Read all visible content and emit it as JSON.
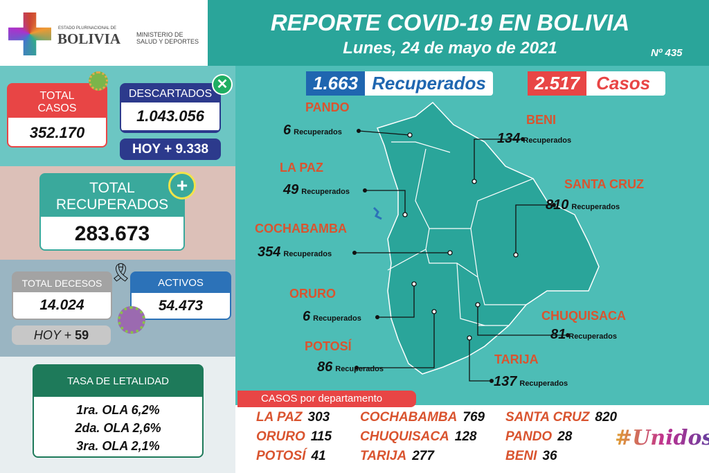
{
  "header": {
    "org_small": "ESTADO PLURINACIONAL DE",
    "org": "BOLIVIA",
    "ministry": [
      "MINISTERIO DE",
      "SALUD Y DEPORTES"
    ],
    "title": "REPORTE COVID-19 EN BOLIVIA",
    "date": "Lunes, 24 de mayo de 2021",
    "report_number": "Nº 435"
  },
  "stats": {
    "total_casos": {
      "label1": "TOTAL",
      "label2": "CASOS",
      "value": "352.170"
    },
    "descartados": {
      "label": "DESCARTADOS",
      "value": "1.043.056",
      "hoy": "HOY + 9.338"
    },
    "total_recuperados": {
      "label1": "TOTAL",
      "label2": "RECUPERADOS",
      "value": "283.673"
    },
    "total_decesos": {
      "label": "TOTAL DECESOS",
      "value": "14.024",
      "hoy_label": "HOY +",
      "hoy_value": "59"
    },
    "activos": {
      "label": "ACTIVOS",
      "value": "54.473"
    },
    "letalidad": {
      "title": "TASA DE LETALIDAD",
      "rows": [
        "1ra. OLA 6,2%",
        "2da. OLA 2,6%",
        "3ra. OLA 2,1%"
      ]
    }
  },
  "daily": {
    "recuperados_value": "1.663",
    "recuperados_label": "Recuperados",
    "casos_value": "2.517",
    "casos_label": "Casos"
  },
  "map": {
    "suffix": "Recuperados",
    "departments": [
      {
        "name": "PANDO",
        "value": "6"
      },
      {
        "name": "BENI",
        "value": "134"
      },
      {
        "name": "LA PAZ",
        "value": "49"
      },
      {
        "name": "SANTA CRUZ",
        "value": "810"
      },
      {
        "name": "COCHABAMBA",
        "value": "354"
      },
      {
        "name": "ORURO",
        "value": "6"
      },
      {
        "name": "CHUQUISACA",
        "value": "81"
      },
      {
        "name": "POTOSÍ",
        "value": "86"
      },
      {
        "name": "TARIJA",
        "value": "137"
      }
    ]
  },
  "casos_dept": {
    "title": "CASOS por departamento",
    "rows": [
      {
        "name": "LA PAZ",
        "value": "303"
      },
      {
        "name": "COCHABAMBA",
        "value": "769"
      },
      {
        "name": "SANTA CRUZ",
        "value": "820"
      },
      {
        "name": "ORURO",
        "value": "115"
      },
      {
        "name": "CHUQUISACA",
        "value": "128"
      },
      {
        "name": "PANDO",
        "value": "28"
      },
      {
        "name": "POTOSÍ",
        "value": "41"
      },
      {
        "name": "TARIJA",
        "value": "277"
      },
      {
        "name": "BENI",
        "value": "36"
      }
    ]
  },
  "campaign_logo": "#UnidosContraElCovid",
  "colors": {
    "teal": "#2aa59a",
    "red": "#e84545",
    "navy": "#2c3a8c",
    "green": "#1e7a5a",
    "orange": "#d9542f"
  }
}
